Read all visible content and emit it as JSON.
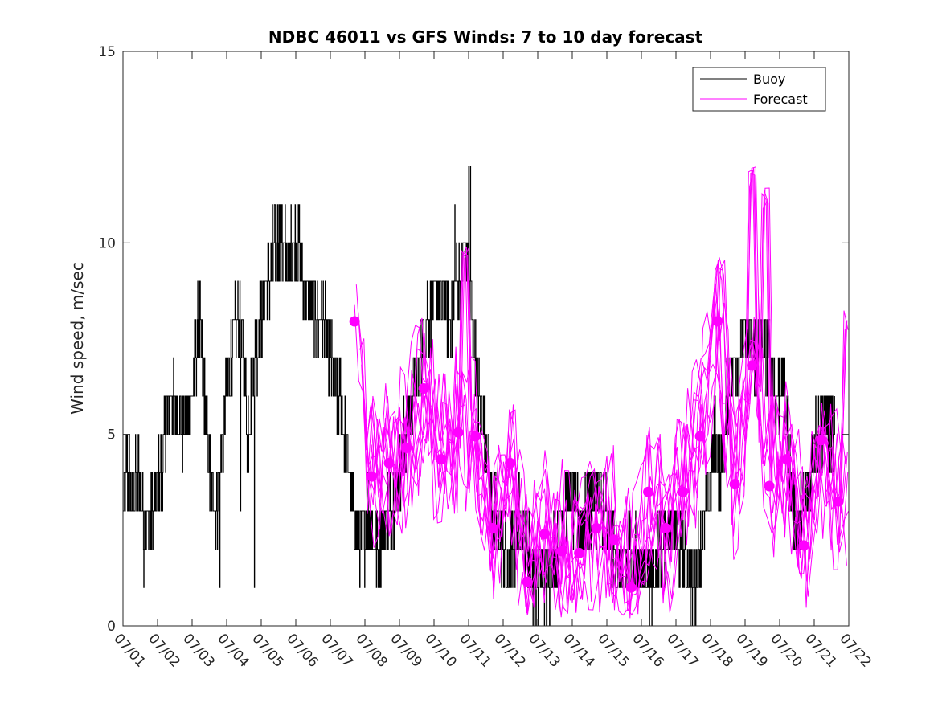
{
  "chart_data": {
    "type": "line",
    "title": "NDBC 46011 vs GFS Winds: 7 to 10 day forecast",
    "xlabel": "",
    "ylabel": "Wind speed, m/sec",
    "xlim": [
      0,
      21
    ],
    "ylim": [
      0,
      15
    ],
    "yticks": [
      0,
      5,
      10,
      15
    ],
    "xtick_labels": [
      "07/01",
      "07/02",
      "07/03",
      "07/04",
      "07/05",
      "07/06",
      "07/07",
      "07/08",
      "07/09",
      "07/10",
      "07/11",
      "07/12",
      "07/13",
      "07/14",
      "07/15",
      "07/16",
      "07/17",
      "07/18",
      "07/19",
      "07/20",
      "07/21",
      "07/22"
    ],
    "legend": {
      "placement": "top-right",
      "entries": [
        {
          "name": "Buoy",
          "color": "#000000"
        },
        {
          "name": "Forecast",
          "color": "#ff00ff"
        }
      ]
    },
    "grid": false,
    "colors": {
      "buoy": "#000000",
      "forecast": "#ff00ff"
    },
    "buoy_anchors": [
      [
        0.0,
        3
      ],
      [
        0.1,
        4
      ],
      [
        0.3,
        3.5
      ],
      [
        0.5,
        4
      ],
      [
        0.7,
        2.5
      ],
      [
        0.9,
        3
      ],
      [
        1.1,
        4
      ],
      [
        1.2,
        5
      ],
      [
        1.4,
        6
      ],
      [
        1.6,
        5.5
      ],
      [
        1.8,
        5
      ],
      [
        2.0,
        6
      ],
      [
        2.1,
        7
      ],
      [
        2.2,
        8
      ],
      [
        2.35,
        6
      ],
      [
        2.5,
        4
      ],
      [
        2.7,
        3
      ],
      [
        2.8,
        4
      ],
      [
        3.0,
        6
      ],
      [
        3.1,
        7
      ],
      [
        3.3,
        8
      ],
      [
        3.5,
        7
      ],
      [
        3.6,
        5
      ],
      [
        3.8,
        7
      ],
      [
        4.0,
        8
      ],
      [
        4.2,
        9
      ],
      [
        4.4,
        10
      ],
      [
        4.6,
        10
      ],
      [
        4.8,
        9.5
      ],
      [
        5.0,
        10
      ],
      [
        5.2,
        9
      ],
      [
        5.4,
        8.5
      ],
      [
        5.6,
        8
      ],
      [
        5.8,
        8
      ],
      [
        6.0,
        7
      ],
      [
        6.2,
        6
      ],
      [
        6.3,
        6
      ],
      [
        6.5,
        4
      ],
      [
        6.7,
        3
      ],
      [
        6.9,
        2
      ],
      [
        7.1,
        3
      ],
      [
        7.3,
        2
      ],
      [
        7.5,
        2.5
      ],
      [
        7.7,
        3
      ],
      [
        8.0,
        4
      ],
      [
        8.2,
        5
      ],
      [
        8.4,
        6
      ],
      [
        8.6,
        7
      ],
      [
        8.8,
        8
      ],
      [
        9.0,
        8.5
      ],
      [
        9.3,
        8.5
      ],
      [
        9.5,
        8
      ],
      [
        9.7,
        9
      ],
      [
        9.9,
        10
      ],
      [
        10.1,
        8
      ],
      [
        10.3,
        6
      ],
      [
        10.5,
        5
      ],
      [
        10.7,
        3
      ],
      [
        10.9,
        2.5
      ],
      [
        11.1,
        1.5
      ],
      [
        11.3,
        2
      ],
      [
        11.5,
        3
      ],
      [
        11.7,
        2
      ],
      [
        11.9,
        1
      ],
      [
        12.1,
        1.5
      ],
      [
        12.3,
        1
      ],
      [
        12.5,
        2
      ],
      [
        12.7,
        3
      ],
      [
        12.9,
        3.5
      ],
      [
        13.1,
        3
      ],
      [
        13.3,
        2.5
      ],
      [
        13.5,
        3
      ],
      [
        13.7,
        3.5
      ],
      [
        13.9,
        3
      ],
      [
        14.1,
        2.5
      ],
      [
        14.3,
        1.5
      ],
      [
        14.5,
        1.5
      ],
      [
        14.7,
        2
      ],
      [
        14.9,
        1.5
      ],
      [
        15.1,
        1.5
      ],
      [
        15.3,
        1
      ],
      [
        15.5,
        2
      ],
      [
        15.7,
        2.5
      ],
      [
        15.9,
        2.5
      ],
      [
        16.1,
        2
      ],
      [
        16.3,
        1.5
      ],
      [
        16.5,
        1
      ],
      [
        16.7,
        2
      ],
      [
        16.9,
        3
      ],
      [
        17.1,
        5
      ],
      [
        17.3,
        4
      ],
      [
        17.5,
        6
      ],
      [
        17.7,
        7
      ],
      [
        17.9,
        7.5
      ],
      [
        18.1,
        7.5
      ],
      [
        18.3,
        7
      ],
      [
        18.5,
        7.5
      ],
      [
        18.7,
        7
      ],
      [
        18.9,
        6
      ],
      [
        19.1,
        6.5
      ],
      [
        19.3,
        4
      ],
      [
        19.5,
        2.5
      ],
      [
        19.7,
        3
      ],
      [
        19.9,
        4
      ],
      [
        20.1,
        5
      ],
      [
        20.3,
        5.5
      ],
      [
        20.5,
        5
      ],
      [
        20.6,
        4.5
      ]
    ],
    "forecast_points": [
      [
        6.7,
        7.95
      ],
      [
        7.2,
        3.9
      ],
      [
        7.7,
        4.25
      ],
      [
        8.2,
        4.65
      ],
      [
        8.7,
        6.2
      ],
      [
        9.2,
        4.35
      ],
      [
        9.7,
        5.05
      ],
      [
        10.2,
        4.95
      ],
      [
        10.7,
        2.55
      ],
      [
        11.2,
        4.25
      ],
      [
        11.7,
        1.15
      ],
      [
        12.2,
        2.4
      ],
      [
        12.7,
        1.95
      ],
      [
        13.2,
        1.9
      ],
      [
        13.7,
        2.55
      ],
      [
        14.2,
        2.25
      ],
      [
        14.7,
        1.0
      ],
      [
        15.2,
        3.5
      ],
      [
        15.7,
        2.55
      ],
      [
        16.2,
        3.5
      ],
      [
        16.7,
        4.95
      ],
      [
        17.2,
        7.95
      ],
      [
        17.7,
        3.7
      ],
      [
        18.2,
        6.8
      ],
      [
        18.7,
        3.65
      ],
      [
        19.2,
        4.35
      ],
      [
        19.7,
        2.1
      ],
      [
        20.2,
        4.85
      ],
      [
        20.7,
        3.25
      ]
    ],
    "forecast_extremes": [
      [
        6.7,
        8.8
      ],
      [
        9.9,
        9.9
      ],
      [
        17.3,
        9.6
      ],
      [
        18.2,
        12.0
      ],
      [
        18.6,
        11.5
      ],
      [
        20.95,
        8.3
      ]
    ]
  }
}
